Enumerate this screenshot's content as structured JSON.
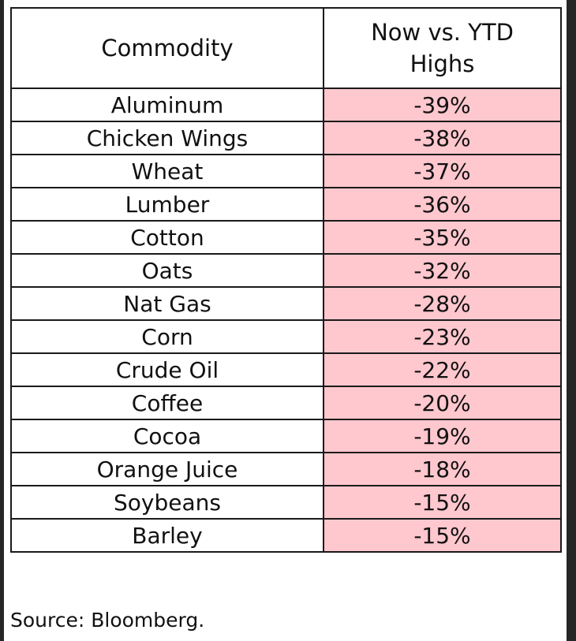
{
  "chart_data": {
    "type": "table",
    "columns": [
      "Commodity",
      "Now vs. YTD Highs"
    ],
    "rows": [
      {
        "commodity": "Aluminum",
        "change": "-39%"
      },
      {
        "commodity": "Chicken Wings",
        "change": "-38%"
      },
      {
        "commodity": "Wheat",
        "change": "-37%"
      },
      {
        "commodity": "Lumber",
        "change": "-36%"
      },
      {
        "commodity": "Cotton",
        "change": "-35%"
      },
      {
        "commodity": "Oats",
        "change": "-32%"
      },
      {
        "commodity": "Nat Gas",
        "change": "-28%"
      },
      {
        "commodity": "Corn",
        "change": "-23%"
      },
      {
        "commodity": "Crude Oil",
        "change": "-22%"
      },
      {
        "commodity": "Coffee",
        "change": "-20%"
      },
      {
        "commodity": "Cocoa",
        "change": "-19%"
      },
      {
        "commodity": "Orange Juice",
        "change": "-18%"
      },
      {
        "commodity": "Soybeans",
        "change": "-15%"
      },
      {
        "commodity": "Barley",
        "change": "-15%"
      }
    ],
    "value_cell_color": "#ffc7ce"
  },
  "header": {
    "col1": "Commodity",
    "col2_line1": "Now vs. YTD",
    "col2_line2": "Highs"
  },
  "source": "Source: Bloomberg."
}
